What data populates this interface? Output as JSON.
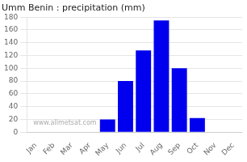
{
  "chart_data": {
    "type": "bar",
    "title": "Umm Benin : precipitation (mm)",
    "categories": [
      "Jan",
      "Feb",
      "Mar",
      "Apr",
      "May",
      "Jun",
      "Jul",
      "Aug",
      "Sep",
      "Oct",
      "Nov",
      "Dec"
    ],
    "values": [
      0,
      0,
      0,
      0,
      20,
      80,
      128,
      175,
      100,
      22,
      0,
      0
    ],
    "color": "#0000EE",
    "ylim": [
      0,
      180
    ],
    "yticks": [
      0,
      20,
      40,
      60,
      80,
      100,
      120,
      140,
      160,
      180
    ],
    "grid": true,
    "annotations": [
      "www.allmetsat.com"
    ]
  }
}
